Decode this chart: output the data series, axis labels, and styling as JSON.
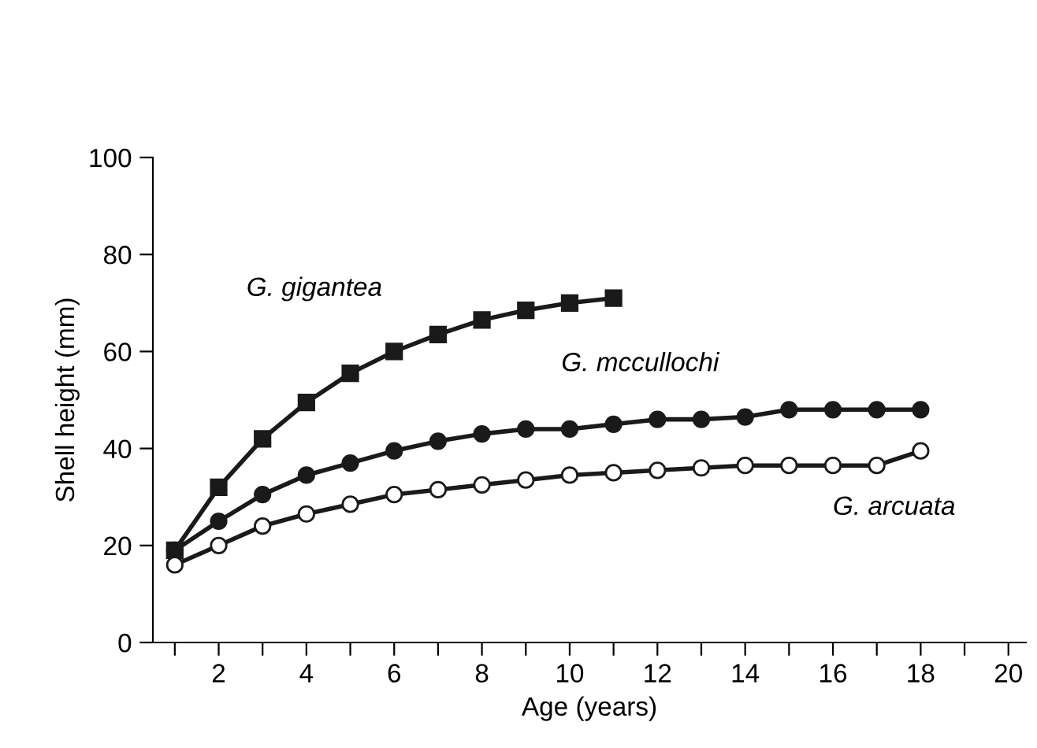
{
  "chart_data": {
    "type": "line",
    "xlabel": "Age (years)",
    "ylabel": "Shell height (mm)",
    "xlim": [
      0.5,
      20.4
    ],
    "ylim": [
      0,
      100
    ],
    "xticks": [
      {
        "value": 1,
        "label": null
      },
      2,
      {
        "value": 3,
        "label": null
      },
      4,
      {
        "value": 5,
        "label": null
      },
      6,
      {
        "value": 7,
        "label": null
      },
      8,
      {
        "value": 9,
        "label": null
      },
      10,
      {
        "value": 11,
        "label": null
      },
      12,
      {
        "value": 13,
        "label": null
      },
      14,
      {
        "value": 15,
        "label": null
      },
      16,
      {
        "value": 17,
        "label": null
      },
      18,
      {
        "value": 19,
        "label": null
      },
      20
    ],
    "yticks": [
      0,
      20,
      40,
      60,
      80,
      100
    ],
    "grid": false,
    "legend": false,
    "line_style": "solid",
    "series": [
      {
        "name": "G. gigantea",
        "color": "#1a1a1a",
        "marker": "square",
        "x": [
          1,
          2,
          3,
          4,
          5,
          6,
          7,
          8,
          9,
          10,
          11
        ],
        "values": [
          19,
          32,
          42,
          49.5,
          55.5,
          60,
          63.5,
          66.5,
          68.5,
          70,
          71
        ]
      },
      {
        "name": "G. mccullochi",
        "color": "#1a1a1a",
        "marker": "circle",
        "x": [
          1,
          2,
          3,
          4,
          5,
          6,
          7,
          8,
          9,
          10,
          11,
          12,
          13,
          14,
          15,
          16,
          17,
          18
        ],
        "values": [
          19,
          25,
          30.5,
          34.5,
          37,
          39.5,
          41.5,
          43,
          44,
          44,
          45,
          46,
          46,
          46.5,
          48,
          48,
          48,
          48
        ]
      },
      {
        "name": "G. arcuata",
        "color": "#ffffff",
        "marker": "circle",
        "x": [
          1,
          2,
          3,
          4,
          5,
          6,
          7,
          8,
          9,
          10,
          11,
          12,
          13,
          14,
          15,
          16,
          17,
          18
        ],
        "values": [
          16,
          20,
          24,
          26.5,
          28.5,
          30.5,
          31.5,
          32.5,
          33.5,
          34.5,
          35,
          35.5,
          36,
          36.5,
          36.5,
          36.5,
          36.5,
          39.5
        ]
      }
    ]
  }
}
